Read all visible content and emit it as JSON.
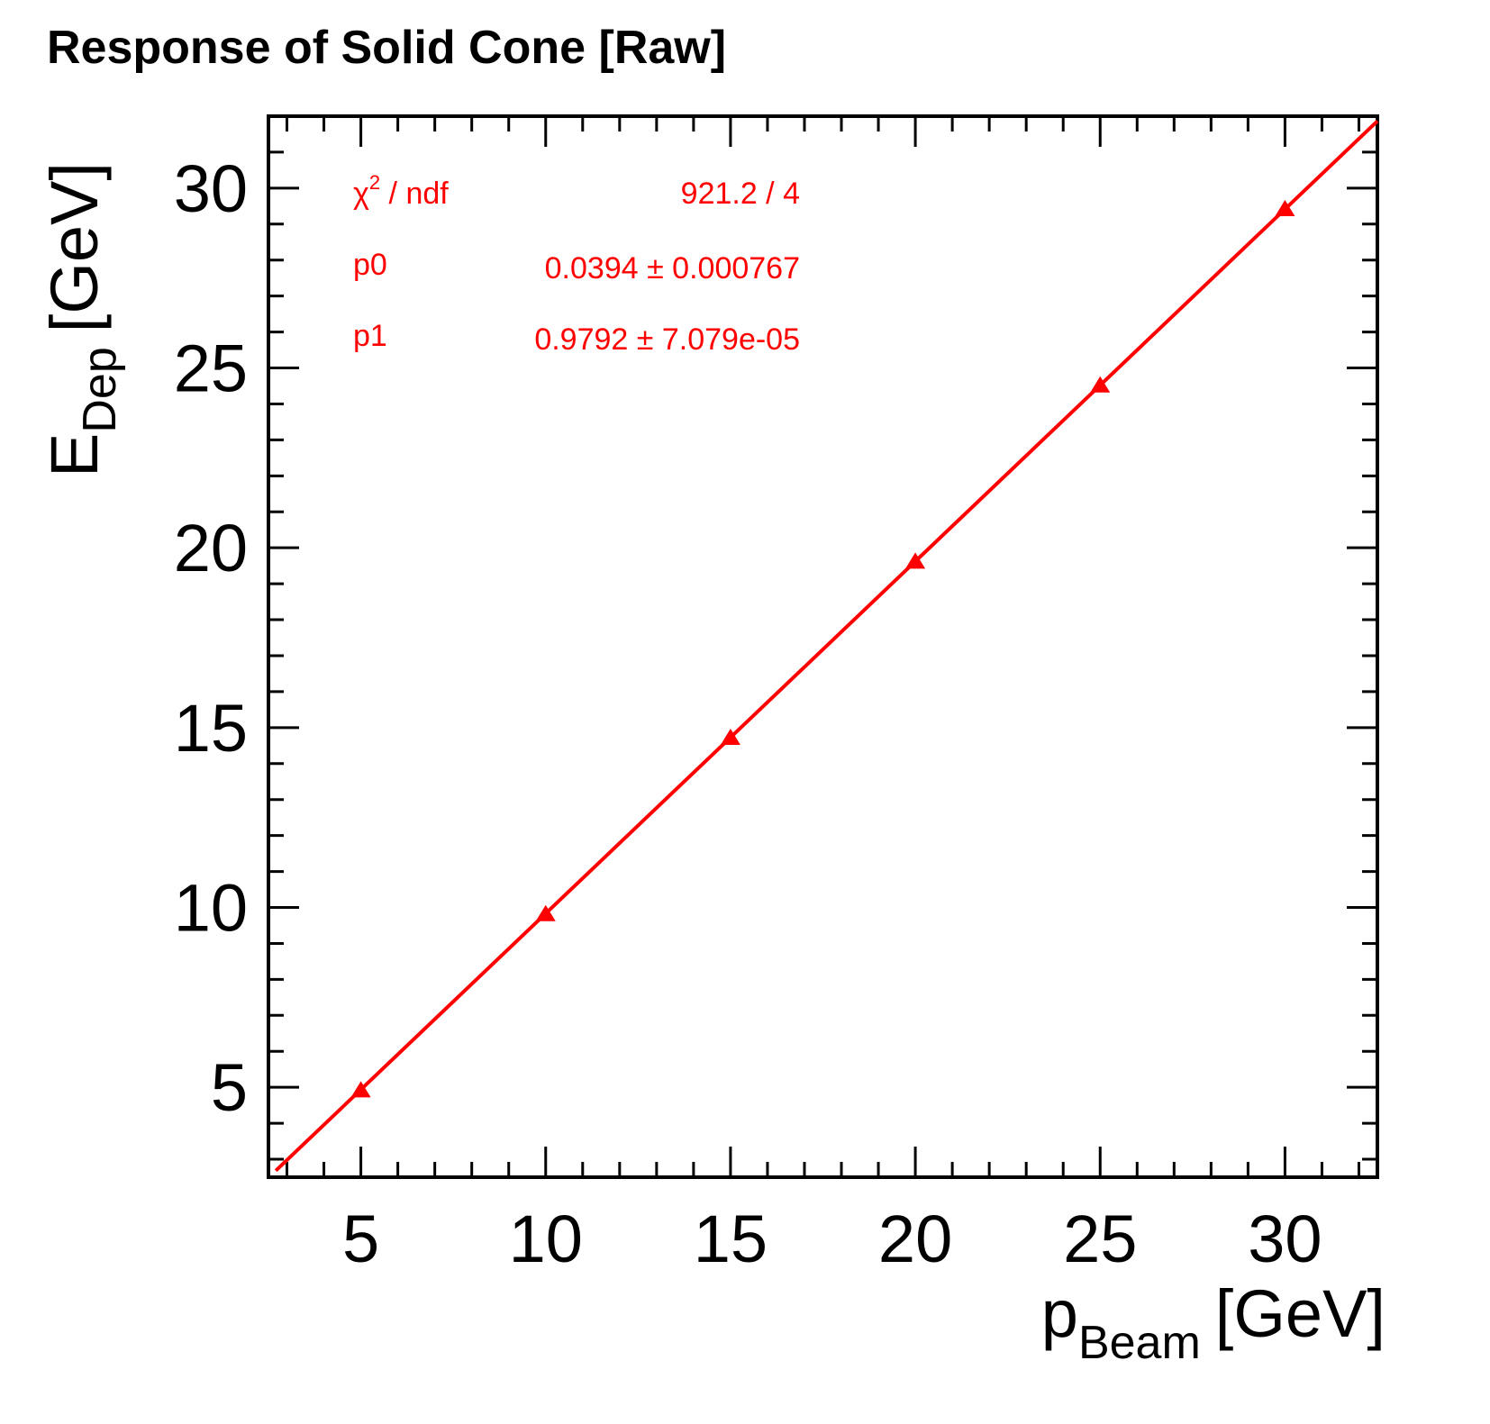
{
  "chart_data": {
    "type": "scatter",
    "title": "Response of Solid Cone [Raw]",
    "xlabel": {
      "main": "p",
      "sub": "Beam",
      "unit": "[GeV]"
    },
    "ylabel": {
      "main": "E",
      "sub": "Dep",
      "unit": "[GeV]"
    },
    "xlim": [
      2.5,
      32.5
    ],
    "ylim": [
      2.5,
      32
    ],
    "x_ticks": [
      5,
      10,
      15,
      20,
      25,
      30
    ],
    "y_ticks": [
      5,
      10,
      15,
      20,
      25,
      30
    ],
    "grid": false,
    "series": [
      {
        "marker": "triangle",
        "color": "#ff0000",
        "x": [
          5,
          10,
          15,
          20,
          25,
          30
        ],
        "y": [
          4.9,
          9.8,
          14.7,
          19.6,
          24.5,
          29.4
        ]
      }
    ],
    "fit": {
      "function": "linear",
      "color": "#ff0000",
      "p0": 0.0394,
      "p1": 0.9792,
      "x_range": [
        2.7,
        32.5
      ]
    },
    "stats_box": {
      "rows": [
        {
          "label_main": "χ",
          "label_sup": "2",
          "label_rest": " / ndf",
          "value": "921.2 / 4"
        },
        {
          "label_main": "p0",
          "label_sup": "",
          "label_rest": "",
          "value": "0.0394 ± 0.000767"
        },
        {
          "label_main": "p1",
          "label_sup": "",
          "label_rest": "",
          "value": "0.9792 ± 7.079e-05"
        }
      ]
    }
  }
}
